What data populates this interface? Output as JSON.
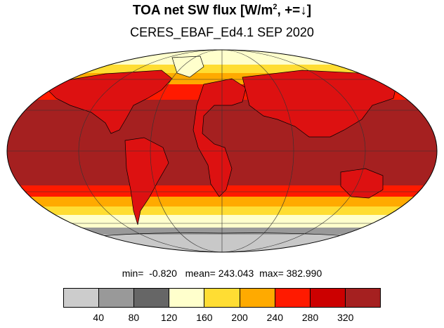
{
  "title": {
    "main": "TOA net SW flux [W/m",
    "sup": "2",
    "tail": ", +=↓]"
  },
  "subtitle": "CERES_EBAF_Ed4.1 SEP 2020",
  "stats": {
    "min_label": "min=",
    "min": "-0.820",
    "mean_label": "mean=",
    "mean": "243.043",
    "max_label": "max=",
    "max": "382.990"
  },
  "colorbar": {
    "colors": [
      "#cccccc",
      "#999999",
      "#666666",
      "#ffffcc",
      "#ffdd33",
      "#ffaa00",
      "#ff1a00",
      "#cc0000",
      "#a52020"
    ],
    "ticks": [
      "40",
      "80",
      "120",
      "160",
      "200",
      "240",
      "280",
      "320"
    ]
  },
  "legend_colors": {
    "polar_gray": "#c8c8c8",
    "midlat_orange": "#ffaa00",
    "tropics_dark_red": "#a52020",
    "land_red": "#dd1111",
    "coast": "#000000"
  }
}
